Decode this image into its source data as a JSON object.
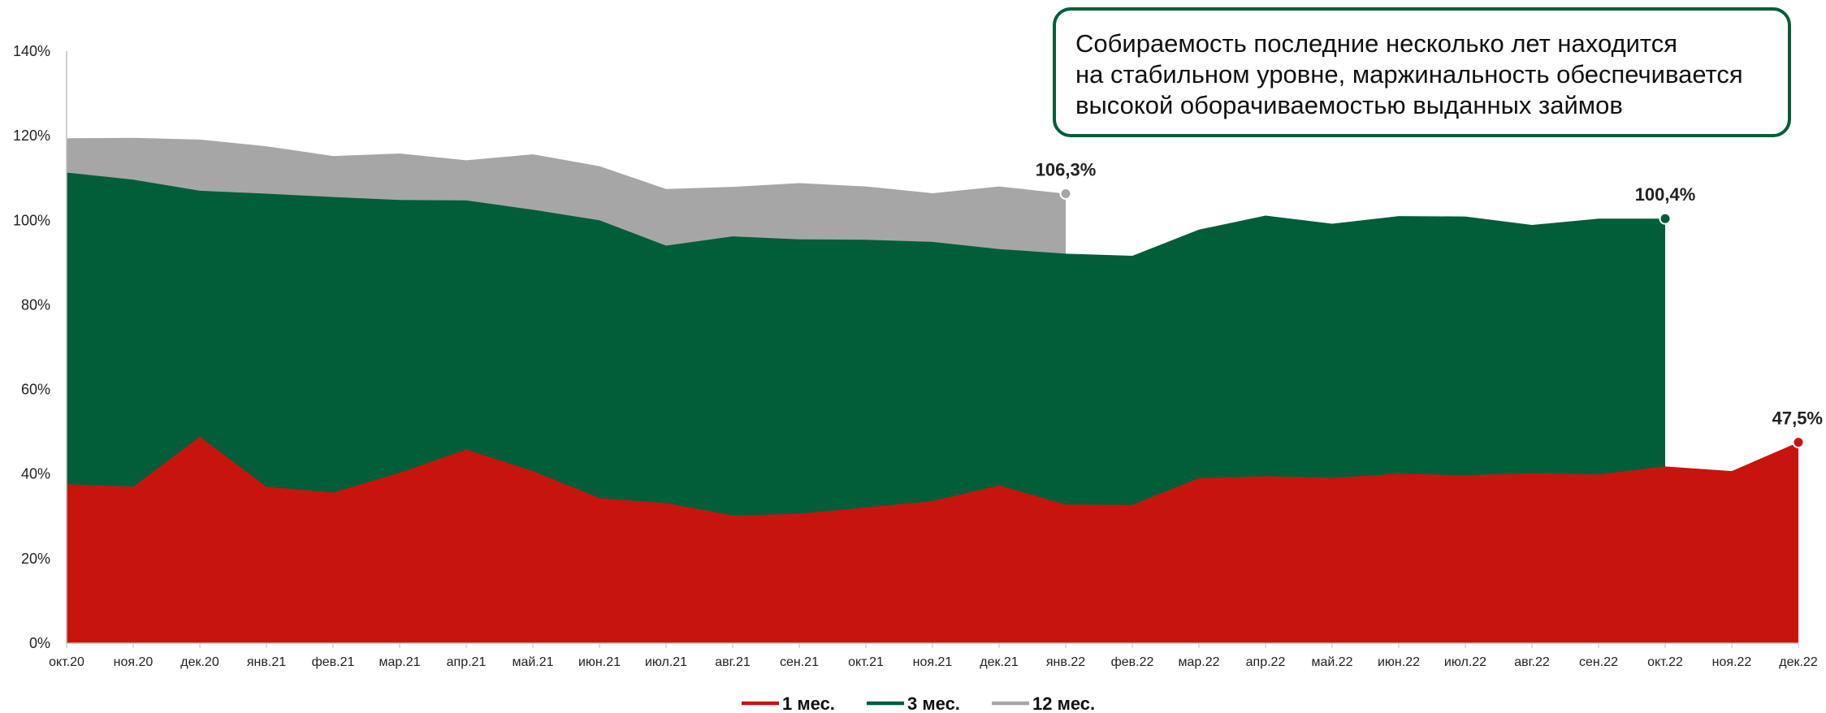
{
  "annotation": {
    "lines": [
      "Собираемость последние несколько лет находится",
      "на стабильном уровне, маржинальность обеспечивается",
      "высокой оборачиваемостью выданных займов"
    ]
  },
  "chart_data": {
    "type": "area",
    "categories": [
      "окт.20",
      "ноя.20",
      "дек.20",
      "янв.21",
      "фев.21",
      "мар.21",
      "апр.21",
      "май.21",
      "июн.21",
      "июл.21",
      "авг.21",
      "сен.21",
      "окт.21",
      "ноя.21",
      "дек.21",
      "янв.22",
      "фев.22",
      "мар.22",
      "апр.22",
      "май.22",
      "июн.22",
      "июл.22",
      "авг.22",
      "сен.22",
      "окт.22",
      "ноя.22",
      "дек.22"
    ],
    "ylim": [
      0,
      140
    ],
    "yticks": [
      0,
      20,
      40,
      60,
      80,
      100,
      120,
      140
    ],
    "ytick_labels": [
      "0%",
      "20%",
      "40%",
      "60%",
      "80%",
      "100%",
      "120%",
      "140%"
    ],
    "grid": false,
    "legend_position": "bottom",
    "series": [
      {
        "name": "1 мес.",
        "color": "#C8140F",
        "values": [
          37.6,
          37.0,
          48.8,
          37.0,
          35.6,
          40.3,
          45.8,
          40.7,
          34.3,
          33.1,
          30.2,
          30.6,
          32.1,
          33.6,
          37.3,
          32.8,
          32.7,
          39.0,
          39.5,
          39.1,
          40.1,
          39.7,
          40.2,
          39.9,
          41.8,
          40.7,
          47.5
        ]
      },
      {
        "name": "3 мес.",
        "color": "#025E38",
        "values": [
          111.3,
          109.6,
          107.0,
          106.3,
          105.5,
          104.8,
          104.7,
          102.5,
          100.0,
          94.0,
          96.2,
          95.5,
          95.4,
          94.9,
          93.2,
          92.1,
          91.6,
          97.8,
          101.1,
          99.2,
          101.0,
          100.9,
          98.9,
          100.4,
          100.4,
          null,
          null
        ]
      },
      {
        "name": "12 мес.",
        "color": "#A6A6A6",
        "values": [
          119.4,
          119.5,
          119.1,
          117.5,
          115.2,
          115.8,
          114.2,
          115.6,
          112.8,
          107.4,
          107.9,
          108.8,
          108.0,
          106.4,
          108.0,
          106.3,
          null,
          null,
          null,
          null,
          null,
          null,
          null,
          null,
          null,
          null,
          null
        ]
      }
    ],
    "data_labels": [
      {
        "series": "12 мес.",
        "category": "янв.22",
        "text": "106,3%"
      },
      {
        "series": "3 мес.",
        "category": "окт.22",
        "text": "100,4%"
      },
      {
        "series": "1 мес.",
        "category": "дек.22",
        "text": "47,5%"
      }
    ]
  }
}
